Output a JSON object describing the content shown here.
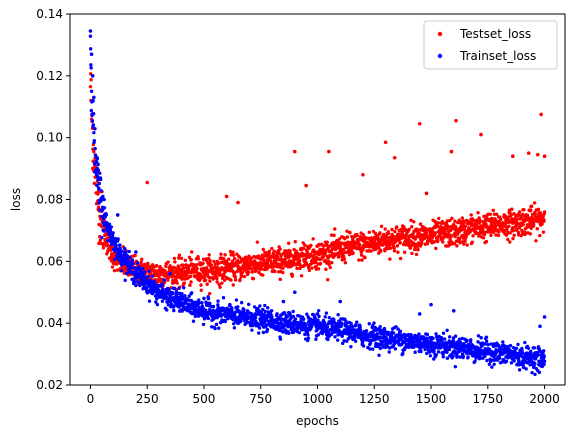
{
  "chart_data": {
    "type": "scatter",
    "title": "",
    "xlabel": "epochs",
    "ylabel": "loss",
    "xlim": [
      -90,
      2090
    ],
    "ylim": [
      0.02,
      0.14
    ],
    "x_ticks": [
      0,
      250,
      500,
      750,
      1000,
      1250,
      1500,
      1750,
      2000
    ],
    "y_ticks": [
      0.02,
      0.04,
      0.06,
      0.08,
      0.1,
      0.12,
      0.14
    ],
    "x_tick_labels": [
      "0",
      "250",
      "500",
      "750",
      "1000",
      "1250",
      "1500",
      "1750",
      "2000"
    ],
    "y_tick_labels": [
      "0.02",
      "0.04",
      "0.06",
      "0.08",
      "0.10",
      "0.12",
      "0.14"
    ],
    "grid": false,
    "legend_position": "top-right",
    "series": [
      {
        "name": "Testset_loss",
        "color": "#ff0000",
        "x": [
          0,
          5,
          10,
          15,
          20,
          30,
          40,
          50,
          60,
          75,
          90,
          100,
          125,
          150,
          175,
          200,
          250,
          300,
          350,
          400,
          450,
          500,
          550,
          600,
          650,
          700,
          750,
          800,
          850,
          900,
          950,
          1000,
          1050,
          1100,
          1150,
          1200,
          1250,
          1300,
          1350,
          1400,
          1450,
          1500,
          1550,
          1600,
          1650,
          1700,
          1750,
          1800,
          1850,
          1900,
          1950,
          2000
        ],
        "y": [
          0.118,
          0.108,
          0.1,
          0.094,
          0.089,
          0.082,
          0.077,
          0.073,
          0.07,
          0.066,
          0.064,
          0.062,
          0.06,
          0.059,
          0.058,
          0.057,
          0.056,
          0.056,
          0.056,
          0.056,
          0.057,
          0.057,
          0.057,
          0.058,
          0.058,
          0.059,
          0.059,
          0.06,
          0.06,
          0.061,
          0.062,
          0.062,
          0.063,
          0.064,
          0.065,
          0.065,
          0.066,
          0.067,
          0.067,
          0.068,
          0.068,
          0.068,
          0.069,
          0.069,
          0.07,
          0.071,
          0.071,
          0.072,
          0.072,
          0.073,
          0.073,
          0.074
        ],
        "outliers_x": [
          250,
          600,
          650,
          900,
          950,
          1050,
          1200,
          1300,
          1340,
          1450,
          1480,
          1590,
          1610,
          1720,
          1860,
          1930,
          1970,
          1985,
          2000
        ],
        "outliers_y": [
          0.0855,
          0.081,
          0.079,
          0.0955,
          0.0845,
          0.0955,
          0.088,
          0.0985,
          0.0935,
          0.1045,
          0.082,
          0.0955,
          0.1055,
          0.101,
          0.094,
          0.095,
          0.0945,
          0.1075,
          0.094
        ]
      },
      {
        "name": "Trainset_loss",
        "color": "#0000ff",
        "x": [
          0,
          5,
          10,
          15,
          20,
          30,
          40,
          50,
          60,
          75,
          90,
          100,
          125,
          150,
          175,
          200,
          250,
          300,
          350,
          400,
          450,
          500,
          550,
          600,
          650,
          700,
          750,
          800,
          850,
          900,
          950,
          1000,
          1050,
          1100,
          1150,
          1200,
          1250,
          1300,
          1350,
          1400,
          1450,
          1500,
          1550,
          1600,
          1650,
          1700,
          1750,
          1800,
          1850,
          1900,
          1950,
          2000
        ],
        "y": [
          0.134,
          0.118,
          0.108,
          0.1,
          0.094,
          0.087,
          0.082,
          0.078,
          0.075,
          0.071,
          0.069,
          0.067,
          0.063,
          0.061,
          0.058,
          0.056,
          0.053,
          0.05,
          0.048,
          0.047,
          0.045,
          0.044,
          0.043,
          0.043,
          0.042,
          0.042,
          0.041,
          0.041,
          0.04,
          0.04,
          0.039,
          0.039,
          0.038,
          0.038,
          0.037,
          0.036,
          0.036,
          0.035,
          0.035,
          0.034,
          0.034,
          0.033,
          0.033,
          0.032,
          0.032,
          0.031,
          0.031,
          0.03,
          0.03,
          0.029,
          0.029,
          0.028
        ],
        "outliers_x": [
          0,
          5,
          10,
          15,
          60,
          120,
          200,
          350,
          500,
          850,
          900,
          1000,
          1100,
          1450,
          1500,
          1600,
          1980,
          2000
        ],
        "outliers_y": [
          0.1345,
          0.127,
          0.12,
          0.113,
          0.08,
          0.075,
          0.063,
          0.056,
          0.048,
          0.047,
          0.05,
          0.043,
          0.047,
          0.043,
          0.046,
          0.044,
          0.039,
          0.042
        ]
      }
    ]
  }
}
